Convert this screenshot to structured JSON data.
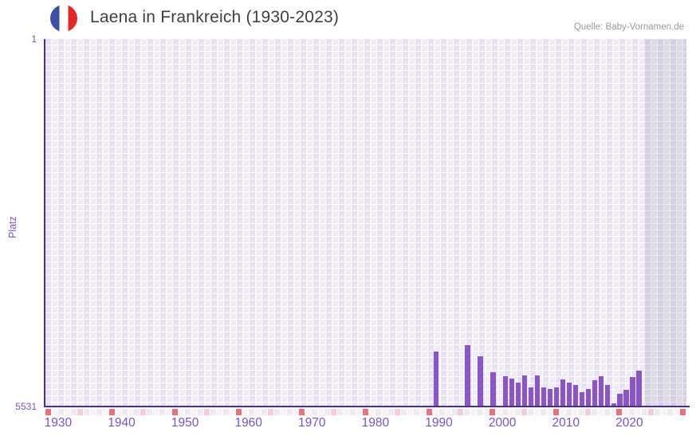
{
  "header": {
    "title": "Laena in Frankreich (1930-2023)",
    "source": "Quelle: Baby-Vornamen.de",
    "flag_icon": "france-flag"
  },
  "chart_data": {
    "type": "bar",
    "title": "Laena in Frankreich (1930-2023)",
    "xlabel": "",
    "ylabel": "Platz",
    "y_axis": {
      "top_label": "1",
      "bottom_label": "5531",
      "min": 1,
      "max": 5531,
      "inverted": true
    },
    "x_domain": [
      1928,
      2029
    ],
    "x_ticks": [
      1930,
      1940,
      1950,
      1960,
      1970,
      1980,
      1990,
      2000,
      2010,
      2020
    ],
    "grid": "checkered-yearly",
    "legend": "none",
    "no_data_shade_from": 2022.3,
    "strip_markers": {
      "red_year_ending": 9,
      "pink_year_ending": 4
    },
    "series": [
      {
        "name": "Platz",
        "points": [
          {
            "year": 1990,
            "rank": 4713
          },
          {
            "year": 1995,
            "rank": 4621
          },
          {
            "year": 1997,
            "rank": 4780
          },
          {
            "year": 1999,
            "rank": 5028
          },
          {
            "year": 2001,
            "rank": 5089
          },
          {
            "year": 2002,
            "rank": 5125
          },
          {
            "year": 2003,
            "rank": 5185
          },
          {
            "year": 2004,
            "rank": 5077
          },
          {
            "year": 2005,
            "rank": 5257
          },
          {
            "year": 2006,
            "rank": 5077
          },
          {
            "year": 2007,
            "rank": 5257
          },
          {
            "year": 2008,
            "rank": 5281
          },
          {
            "year": 2009,
            "rank": 5257
          },
          {
            "year": 2010,
            "rank": 5137
          },
          {
            "year": 2011,
            "rank": 5185
          },
          {
            "year": 2012,
            "rank": 5221
          },
          {
            "year": 2013,
            "rank": 5329
          },
          {
            "year": 2014,
            "rank": 5281
          },
          {
            "year": 2015,
            "rank": 5151
          },
          {
            "year": 2016,
            "rank": 5089
          },
          {
            "year": 2017,
            "rank": 5213
          },
          {
            "year": 2018,
            "rank": 5491
          },
          {
            "year": 2019,
            "rank": 5345
          },
          {
            "year": 2020,
            "rank": 5285
          },
          {
            "year": 2021,
            "rank": 5093
          },
          {
            "year": 2022,
            "rank": 5001
          }
        ]
      }
    ]
  },
  "colors": {
    "bar": "#8a56c4",
    "axis_line": "#4b2e92",
    "tick_text": "#7c52c2",
    "title_text": "#3f3f3f",
    "source_text": "#999999",
    "cell_dark": "#e7e2f3",
    "cell_light": "#f0edf8",
    "strip_base_a": "#efe9f3",
    "strip_base_b": "#f8f1f6",
    "strip_pink": "#f4ccd7",
    "strip_red": "#e5737c",
    "flag_blue": "#3b50a5",
    "flag_white": "#ffffff",
    "flag_red": "#e02a2a"
  }
}
